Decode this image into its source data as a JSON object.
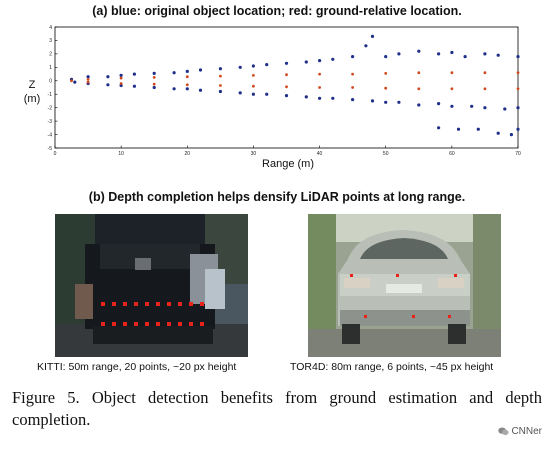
{
  "panel_a": {
    "title": "(a) blue: original object location; red: ground-relative location.",
    "xlabel": "Range (m)",
    "ylabel_line1": "Z",
    "ylabel_line2": "(m)"
  },
  "chart_data": {
    "type": "scatter",
    "title": "(a) blue: original object location; red: ground-relative location.",
    "xlabel": "Range (m)",
    "ylabel": "Z (m)",
    "xlim": [
      0,
      70
    ],
    "ylim": [
      -5,
      4
    ],
    "xticks": [
      "0",
      "10",
      "20",
      "30",
      "40",
      "50",
      "60",
      "70"
    ],
    "yticks": [
      "4",
      "3",
      "2",
      "1",
      "0",
      "-1",
      "-2",
      "-3",
      "-4",
      "-5"
    ],
    "grid": false,
    "series": [
      {
        "name": "blue: original object location",
        "color": "#1f2f8a",
        "values": [
          [
            2.5,
            0.1
          ],
          [
            3,
            -0.1
          ],
          [
            5,
            0.3
          ],
          [
            5,
            -0.2
          ],
          [
            8,
            0.3
          ],
          [
            8,
            -0.3
          ],
          [
            10,
            0.4
          ],
          [
            10,
            -0.35
          ],
          [
            12,
            0.5
          ],
          [
            12,
            -0.4
          ],
          [
            15,
            0.55
          ],
          [
            15,
            -0.5
          ],
          [
            18,
            0.6
          ],
          [
            18,
            -0.6
          ],
          [
            20,
            0.7
          ],
          [
            20,
            -0.6
          ],
          [
            22,
            0.8
          ],
          [
            22,
            -0.7
          ],
          [
            25,
            0.9
          ],
          [
            25,
            -0.8
          ],
          [
            28,
            1.0
          ],
          [
            28,
            -0.9
          ],
          [
            30,
            1.1
          ],
          [
            30,
            -1.0
          ],
          [
            32,
            1.2
          ],
          [
            32,
            -1.0
          ],
          [
            35,
            1.3
          ],
          [
            35,
            -1.1
          ],
          [
            38,
            1.4
          ],
          [
            38,
            -1.2
          ],
          [
            40,
            1.5
          ],
          [
            40,
            -1.3
          ],
          [
            42,
            1.6
          ],
          [
            42,
            -1.3
          ],
          [
            45,
            1.8
          ],
          [
            45,
            -1.4
          ],
          [
            47,
            2.6
          ],
          [
            48,
            3.3
          ],
          [
            48,
            -1.5
          ],
          [
            50,
            1.8
          ],
          [
            50,
            -1.6
          ],
          [
            52,
            2.0
          ],
          [
            52,
            -1.6
          ],
          [
            55,
            2.2
          ],
          [
            55,
            -1.8
          ],
          [
            58,
            2.0
          ],
          [
            58,
            -1.7
          ],
          [
            60,
            2.1
          ],
          [
            60,
            -1.9
          ],
          [
            62,
            1.8
          ],
          [
            63,
            -1.9
          ],
          [
            65,
            2.0
          ],
          [
            65,
            -2.0
          ],
          [
            67,
            1.9
          ],
          [
            68,
            -2.1
          ],
          [
            70,
            1.8
          ],
          [
            70,
            -2.0
          ],
          [
            58,
            -3.5
          ],
          [
            61,
            -3.6
          ],
          [
            64,
            -3.6
          ],
          [
            67,
            -3.9
          ],
          [
            69,
            -4.0
          ],
          [
            70,
            -3.6
          ]
        ]
      },
      {
        "name": "red: ground-relative location",
        "color": "#d14a1e",
        "values": [
          [
            2.5,
            0.0
          ],
          [
            5,
            0.1
          ],
          [
            5,
            -0.1
          ],
          [
            10,
            0.2
          ],
          [
            10,
            -0.2
          ],
          [
            15,
            0.25
          ],
          [
            15,
            -0.25
          ],
          [
            20,
            0.3
          ],
          [
            20,
            -0.3
          ],
          [
            25,
            0.35
          ],
          [
            25,
            -0.35
          ],
          [
            30,
            0.4
          ],
          [
            30,
            -0.4
          ],
          [
            35,
            0.45
          ],
          [
            35,
            -0.45
          ],
          [
            40,
            0.5
          ],
          [
            40,
            -0.5
          ],
          [
            45,
            0.5
          ],
          [
            45,
            -0.5
          ],
          [
            50,
            0.55
          ],
          [
            50,
            -0.55
          ],
          [
            55,
            0.6
          ],
          [
            55,
            -0.6
          ],
          [
            60,
            0.6
          ],
          [
            60,
            -0.6
          ],
          [
            65,
            0.6
          ],
          [
            65,
            -0.6
          ],
          [
            70,
            0.6
          ],
          [
            70,
            -0.6
          ]
        ]
      }
    ]
  },
  "panel_b": {
    "title": "(b) Depth completion helps densify LiDAR points at long range.",
    "kitti": {
      "caption": "KITTI: 50m range, 20 points, ~20 px height",
      "lidar_point_color": "#e8231c"
    },
    "tor4d": {
      "caption": "TOR4D: 80m range, 6 points, ~45 px height",
      "lidar_point_color": "#e8231c"
    }
  },
  "figure_caption": "Figure 5. Object detection benefits from ground estimation and depth completion.",
  "watermark": {
    "text": "CNNer",
    "icon": "wechat-icon"
  }
}
